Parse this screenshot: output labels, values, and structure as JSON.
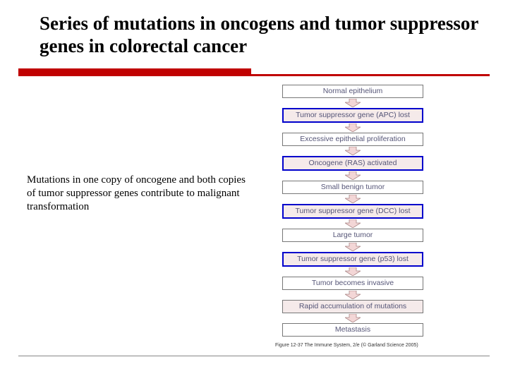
{
  "title": "Series of mutations in oncogens and tumor suppressor genes in colorectal cancer",
  "title_fontsize": 27,
  "title_color": "#000000",
  "accent_color": "#c00000",
  "body_text": "Mutations in one copy of oncogene and both copies of tumor suppressor genes contribute to malignant transformation",
  "body_fontsize": 15,
  "body_color": "#000000",
  "flowchart": {
    "box_fontsize": 10.5,
    "highlight_border": "#0000cc",
    "highlight_border_width": 2,
    "plain_border": "#777777",
    "plain_border_width": 1,
    "text_color": "#555577",
    "bg_color": "#ffffff",
    "pink_bg": "#f5eaea",
    "arrow_fill": "#f3d6d6",
    "arrow_stroke": "#aa8888",
    "nodes": [
      {
        "label": "Normal epithelium",
        "highlight": false,
        "bg": "plain"
      },
      {
        "label": "Tumor suppressor gene (APC) lost",
        "highlight": true,
        "bg": "pink"
      },
      {
        "label": "Excessive epithelial proliferation",
        "highlight": false,
        "bg": "plain"
      },
      {
        "label": "Oncogene (RAS) activated",
        "highlight": true,
        "bg": "pink"
      },
      {
        "label": "Small benign tumor",
        "highlight": false,
        "bg": "plain"
      },
      {
        "label": "Tumor suppressor gene (DCC) lost",
        "highlight": true,
        "bg": "pink"
      },
      {
        "label": "Large tumor",
        "highlight": false,
        "bg": "plain"
      },
      {
        "label": "Tumor suppressor gene (p53) lost",
        "highlight": true,
        "bg": "pink"
      },
      {
        "label": "Tumor becomes invasive",
        "highlight": false,
        "bg": "plain"
      },
      {
        "label": "Rapid accumulation of mutations",
        "highlight": false,
        "bg": "pink"
      },
      {
        "label": "Metastasis",
        "highlight": false,
        "bg": "plain"
      }
    ]
  },
  "caption": "Figure 12-37 The Immune System, 2/e (© Garland Science 2005)",
  "caption_fontsize": 7
}
